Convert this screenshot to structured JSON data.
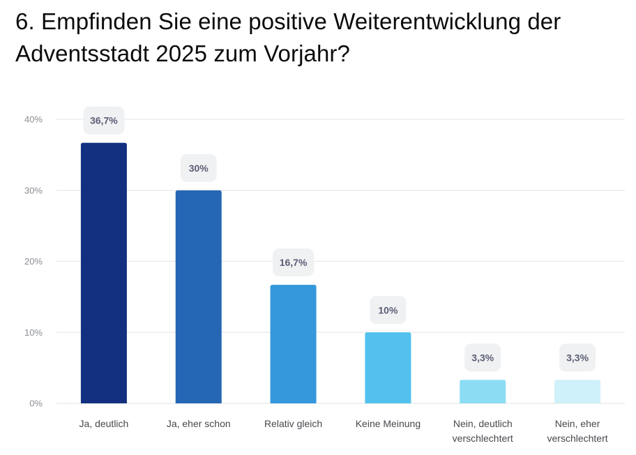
{
  "chart_data": {
    "type": "bar",
    "title": "6. Empfinden Sie eine positive Weiterentwicklung der Adventsstadt 2025 zum Vorjahr?",
    "xlabel": "",
    "ylabel": "",
    "ylim": [
      0,
      40
    ],
    "yticks": [
      0,
      10,
      20,
      30,
      40
    ],
    "ytick_labels": [
      "0%",
      "10%",
      "20%",
      "30%",
      "40%"
    ],
    "grid": true,
    "legend": "none",
    "categories": [
      [
        "Ja, deutlich"
      ],
      [
        "Ja, eher schon"
      ],
      [
        "Relativ gleich"
      ],
      [
        "Keine Meinung"
      ],
      [
        "Nein, deutlich",
        "verschlechtert"
      ],
      [
        "Nein, eher",
        "verschlechtert"
      ]
    ],
    "values": [
      36.7,
      30,
      16.7,
      10,
      3.3,
      3.3
    ],
    "data_labels": [
      "36,7%",
      "30%",
      "16,7%",
      "10%",
      "3,3%",
      "3,3%"
    ],
    "colors": [
      "#12307f",
      "#2566b5",
      "#3598dc",
      "#52c1ee",
      "#8cdcf3",
      "#cff1f9"
    ]
  },
  "colors": {
    "grid": "#e8e8e8",
    "label_box": "#f0f1f2"
  }
}
